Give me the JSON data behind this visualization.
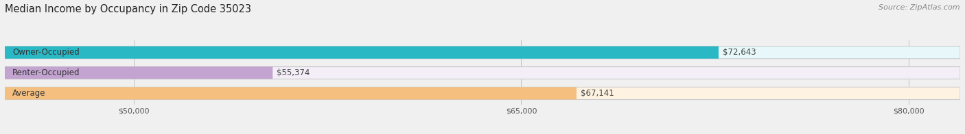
{
  "title": "Median Income by Occupancy in Zip Code 35023",
  "source": "Source: ZipAtlas.com",
  "categories": [
    "Owner-Occupied",
    "Renter-Occupied",
    "Average"
  ],
  "values": [
    72643,
    55374,
    67141
  ],
  "bar_colors": [
    "#2ab8c5",
    "#c3a3d0",
    "#f5bf80"
  ],
  "bar_bg_colors": [
    "#e8f8fa",
    "#f3eef7",
    "#fef3e2"
  ],
  "value_labels": [
    "$72,643",
    "$55,374",
    "$67,141"
  ],
  "xmin": 45000,
  "xmax": 82000,
  "xticks": [
    50000,
    65000,
    80000
  ],
  "xtick_labels": [
    "$50,000",
    "$65,000",
    "$80,000"
  ],
  "title_fontsize": 10.5,
  "source_fontsize": 8,
  "label_fontsize": 8.5,
  "value_fontsize": 8.5,
  "bar_height": 0.6,
  "background_color": "#f0f0f0"
}
